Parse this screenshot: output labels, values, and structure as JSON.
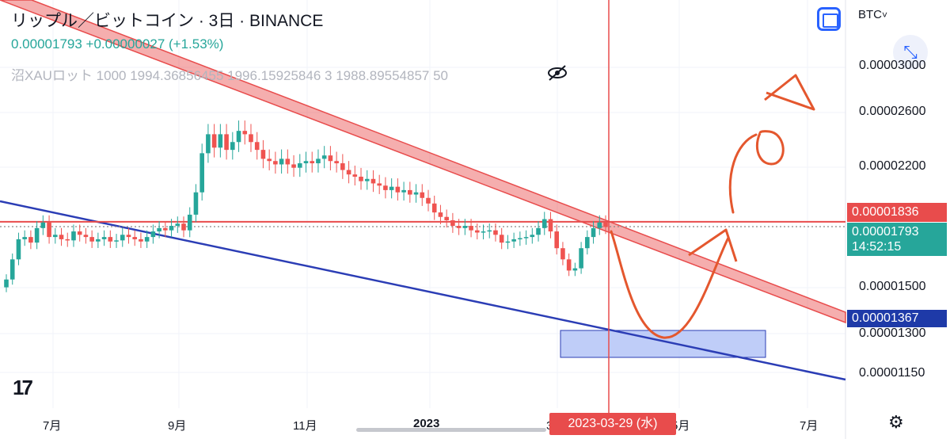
{
  "header": {
    "title": "リップル／ビットコイン · 3日 · BINANCE",
    "price_line": "0.00001793 +0.00000027 (+1.53%)",
    "indicator": "沼XAUロット 1000 1994.36856455 1996.15925846 3 1988.89554857 50"
  },
  "toolbar": {
    "symbol_label": "BTC",
    "dropdown_glyph": "˅",
    "collapse_glyph": "⤡",
    "settings_glyph": "⚙",
    "logo_text": "17"
  },
  "price_tags": {
    "red": "0.00001836",
    "green": "0.00001793",
    "countdown": "14:52:15",
    "blue": "0.00001367"
  },
  "crosshair_date": "2023-03-29 (水)",
  "chart_data": {
    "type": "candlestick",
    "y_axis_labels": [
      "0.00003000",
      "0.00002600",
      "0.00002200",
      "0.00001500",
      "0.00001300",
      "0.00001150"
    ],
    "x_axis_labels": [
      "7月",
      "9月",
      "11月",
      "2023",
      "3月",
      "5月",
      "7月"
    ],
    "ylim": [
      1.05e-05,
      3.3e-05
    ],
    "horizontal_lines": [
      {
        "price": 1.836e-05,
        "color": "#e84c4c",
        "style": "solid"
      },
      {
        "price": 1.793e-05,
        "color": "#888888",
        "style": "dotted"
      }
    ],
    "colors": {
      "up": "#26a69a",
      "down": "#ef5350",
      "trendline": "#2b3db5",
      "channel": "#e84c4c",
      "box": "#a9bcf5"
    },
    "candles_close": [
      1.32e-05,
      1.5e-05,
      1.68e-05,
      1.7e-05,
      1.65e-05,
      1.78e-05,
      1.83e-05,
      1.7e-05,
      1.72e-05,
      1.68e-05,
      1.67e-05,
      1.75e-05,
      1.72e-05,
      1.7e-05,
      1.66e-05,
      1.68e-05,
      1.7e-05,
      1.66e-05,
      1.67e-05,
      1.72e-05,
      1.7e-05,
      1.68e-05,
      1.66e-05,
      1.7e-05,
      1.75e-05,
      1.78e-05,
      1.76e-05,
      1.8e-05,
      1.82e-05,
      1.76e-05,
      1.9e-05,
      2.1e-05,
      2.45e-05,
      2.62e-05,
      2.5e-05,
      2.62e-05,
      2.48e-05,
      2.55e-05,
      2.65e-05,
      2.62e-05,
      2.55e-05,
      2.48e-05,
      2.4e-05,
      2.38e-05,
      2.35e-05,
      2.4e-05,
      2.35e-05,
      2.32e-05,
      2.36e-05,
      2.38e-05,
      2.36e-05,
      2.4e-05,
      2.43e-05,
      2.38e-05,
      2.36e-05,
      2.3e-05,
      2.26e-05,
      2.24e-05,
      2.2e-05,
      2.22e-05,
      2.18e-05,
      2.16e-05,
      2.12e-05,
      2.15e-05,
      2.1e-05,
      2.12e-05,
      2.08e-05,
      2.1e-05,
      2.05e-05,
      2e-05,
      1.92e-05,
      1.88e-05,
      1.85e-05,
      1.8e-05,
      1.78e-05,
      1.8e-05,
      1.76e-05,
      1.74e-05,
      1.75e-05,
      1.76e-05,
      1.72e-05,
      1.65e-05,
      1.66e-05,
      1.68e-05,
      1.69e-05,
      1.7e-05,
      1.72e-05,
      1.78e-05,
      1.86e-05,
      1.75e-05,
      1.6e-05,
      1.5e-05,
      1.4e-05,
      1.42e-05,
      1.6e-05,
      1.7e-05,
      1.78e-05,
      1.83e-05,
      1.79e-05
    ]
  }
}
